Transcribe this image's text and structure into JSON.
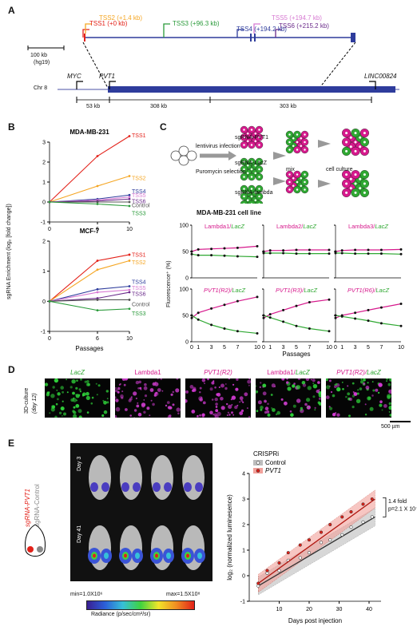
{
  "panels": {
    "a": "A",
    "b": "B",
    "c": "C",
    "d": "D",
    "e": "E"
  },
  "panel_a": {
    "tss": [
      {
        "label": "TSS1",
        "pos": "(+0 kb)",
        "color": "#e32119"
      },
      {
        "label": "TSS2",
        "pos": "(+1.4 kb)",
        "color": "#f5a623"
      },
      {
        "label": "TSS3",
        "pos": "(+96.3 kb)",
        "color": "#2a9a3a"
      },
      {
        "label": "TSS4",
        "pos": "(+194.2 kb)",
        "color": "#2e3c9c"
      },
      {
        "label": "TSS5",
        "pos": "(+194.7 kb)",
        "color": "#d77ad2"
      },
      {
        "label": "TSS6",
        "pos": "(+215.2 kb)",
        "color": "#6a2a8a"
      }
    ],
    "scale_label": "100 kb",
    "scale_sub": "(hg19)",
    "chr_label": "Chr 8",
    "genes": {
      "myc": "MYC",
      "pvt1": "PVT1",
      "linc": "LINC00824"
    },
    "distances": [
      "53 kb",
      "308 kb",
      "303 kb"
    ]
  },
  "panel_b": {
    "ylabel": "sgRNA Enrichment (log₂ [fold change])",
    "xlabel": "Passages",
    "chart_data": [
      {
        "type": "line",
        "title": "MDA-MB-231",
        "x": [
          0,
          6,
          10
        ],
        "ylim": [
          -1,
          3
        ],
        "series": [
          {
            "name": "TSS1",
            "color": "#e32119",
            "values": [
              0,
              2.3,
              3.3
            ]
          },
          {
            "name": "TSS2",
            "color": "#f5a623",
            "values": [
              0,
              0.8,
              1.3
            ]
          },
          {
            "name": "TSS4",
            "color": "#2e3c9c",
            "values": [
              0,
              0.15,
              0.35
            ]
          },
          {
            "name": "TSS5",
            "color": "#d77ad2",
            "values": [
              0,
              0.1,
              0.25
            ]
          },
          {
            "name": "TSS6",
            "color": "#6a2a8a",
            "values": [
              0,
              0.05,
              0.15
            ]
          },
          {
            "name": "Control",
            "color": "#555555",
            "values": [
              0,
              0,
              0
            ]
          },
          {
            "name": "TSS3",
            "color": "#2a9a3a",
            "values": [
              0,
              -0.1,
              -0.2
            ]
          }
        ]
      },
      {
        "type": "line",
        "title": "MCF-7",
        "x": [
          0,
          6,
          10
        ],
        "ylim": [
          -1,
          2
        ],
        "series": [
          {
            "name": "TSS1",
            "color": "#e32119",
            "values": [
              0,
              1.35,
              1.55
            ]
          },
          {
            "name": "TSS2",
            "color": "#f5a623",
            "values": [
              0,
              1.05,
              1.35
            ]
          },
          {
            "name": "TSS4",
            "color": "#2e3c9c",
            "values": [
              0,
              0.4,
              0.5
            ]
          },
          {
            "name": "TSS5",
            "color": "#d77ad2",
            "values": [
              0,
              0.3,
              0.38
            ]
          },
          {
            "name": "TSS6",
            "color": "#6a2a8a",
            "values": [
              0,
              0.1,
              0.3
            ]
          },
          {
            "name": "Control",
            "color": "#555555",
            "values": [
              0,
              0.05,
              0.05
            ]
          },
          {
            "name": "TSS3",
            "color": "#2a9a3a",
            "values": [
              0,
              -0.3,
              -0.25
            ]
          }
        ]
      }
    ]
  },
  "panel_c": {
    "schematic": {
      "infection": "lentivirus\ninfection",
      "selection": "Puromycin\nselection",
      "sg1": "sgRNA-PVT1",
      "sg2": "sgRNA-LacZ",
      "sg3": "sgRNA-lambda",
      "mix": "mix",
      "culture": "cell culture"
    },
    "title": "MDA-MB-231 cell line",
    "ylabel": "Fluorescence⁺ (%)",
    "xlabel": "Passages",
    "magenta": "#d6198c",
    "green": "#2fa832",
    "chart_data": [
      {
        "type": "line",
        "title": "Lambda1/LacZ",
        "x": [
          0,
          1,
          3,
          5,
          7,
          10
        ],
        "ylim": [
          0,
          100
        ],
        "series": [
          {
            "name": "Lambda1",
            "values": [
              50,
              54,
              55,
              56,
              57,
              60
            ]
          },
          {
            "name": "LacZ",
            "values": [
              45,
              43,
              43,
              42,
              41,
              40
            ]
          }
        ]
      },
      {
        "type": "line",
        "title": "Lambda2/LacZ",
        "x": [
          0,
          1,
          3,
          5,
          7,
          10
        ],
        "ylim": [
          0,
          100
        ],
        "series": [
          {
            "name": "Lambda2",
            "values": [
              50,
              52,
              52,
              53,
              53,
              53
            ]
          },
          {
            "name": "LacZ",
            "values": [
              47,
              47,
              47,
              46,
              46,
              46
            ]
          }
        ]
      },
      {
        "type": "line",
        "title": "Lambda3/LacZ",
        "x": [
          0,
          1,
          3,
          5,
          7,
          10
        ],
        "ylim": [
          0,
          100
        ],
        "series": [
          {
            "name": "Lambda3",
            "values": [
              50,
              52,
              53,
              53,
              53,
              54
            ]
          },
          {
            "name": "LacZ",
            "values": [
              47,
              47,
              46,
              46,
              46,
              45
            ]
          }
        ]
      },
      {
        "type": "line",
        "title": "PVT1(R2)/LacZ",
        "x": [
          0,
          1,
          3,
          5,
          7,
          10
        ],
        "ylim": [
          0,
          100
        ],
        "series": [
          {
            "name": "PVT1(R2)",
            "values": [
              45,
              55,
              63,
              70,
              77,
              85
            ]
          },
          {
            "name": "LacZ",
            "values": [
              50,
              42,
              32,
              25,
              20,
              16
            ]
          }
        ]
      },
      {
        "type": "line",
        "title": "PVT1(R3)/LacZ",
        "x": [
          0,
          1,
          3,
          5,
          7,
          10
        ],
        "ylim": [
          0,
          100
        ],
        "series": [
          {
            "name": "PVT1(R3)",
            "values": [
              45,
              52,
              60,
              68,
              75,
              80
            ]
          },
          {
            "name": "LacZ",
            "values": [
              50,
              46,
              38,
              30,
              25,
              20
            ]
          }
        ]
      },
      {
        "type": "line",
        "title": "PVT1(R6)/LacZ",
        "x": [
          0,
          1,
          3,
          5,
          7,
          10
        ],
        "ylim": [
          0,
          100
        ],
        "series": [
          {
            "name": "PVT1(R6)",
            "values": [
              45,
              50,
              55,
              60,
              65,
              72
            ]
          },
          {
            "name": "LacZ",
            "values": [
              50,
              48,
              44,
              40,
              35,
              30
            ]
          }
        ]
      }
    ]
  },
  "panel_d": {
    "side_label": "3D-culture",
    "side_sub": "(day 12)",
    "panels": [
      "LacZ",
      "Lambda1",
      "PVT1(R2)",
      "Lambda1/LacZ",
      "PVT1(R2)/LacZ"
    ],
    "scale": "500 µm"
  },
  "panel_e": {
    "sg_pvt1": "sgRNA-PVT1",
    "sg_control": "sgRNA-Control",
    "day3": "Day 3",
    "day41": "Day 41",
    "min": "min=1.0X10⁶",
    "max": "max=1.5X10⁸",
    "radiance": "Radiance (p/sec/cm²/sr)",
    "chart_data": {
      "type": "scatter",
      "xlabel": "Days post injection",
      "ylabel": "log₂ (normalized luminesence)",
      "xlim": [
        0,
        44
      ],
      "ylim": [
        -1,
        4
      ],
      "legend_title": "CRISPRi",
      "series": [
        {
          "name": "Control",
          "color": "#777777",
          "fit": [
            [
              3,
              -0.4
            ],
            [
              42,
              2.3
            ]
          ],
          "x": [
            3,
            6,
            10,
            13,
            17,
            20,
            24,
            27,
            31,
            34,
            38,
            41
          ],
          "values": [
            -0.4,
            0.1,
            0.2,
            0.6,
            0.7,
            0.9,
            1.3,
            1.4,
            1.6,
            1.9,
            2.1,
            2.3
          ]
        },
        {
          "name": "PVT1",
          "color": "#e32119",
          "fit": [
            [
              3,
              -0.3
            ],
            [
              42,
              3.0
            ]
          ],
          "x": [
            3,
            6,
            10,
            13,
            17,
            20,
            24,
            27,
            31,
            34,
            38,
            41
          ],
          "values": [
            -0.3,
            0.2,
            0.5,
            0.9,
            1.2,
            1.4,
            1.7,
            2.0,
            2.3,
            2.5,
            2.8,
            3.0
          ]
        }
      ],
      "annotation_fold": "1.4 fold",
      "annotation_p": "p=2.1 X 10⁻³"
    }
  }
}
